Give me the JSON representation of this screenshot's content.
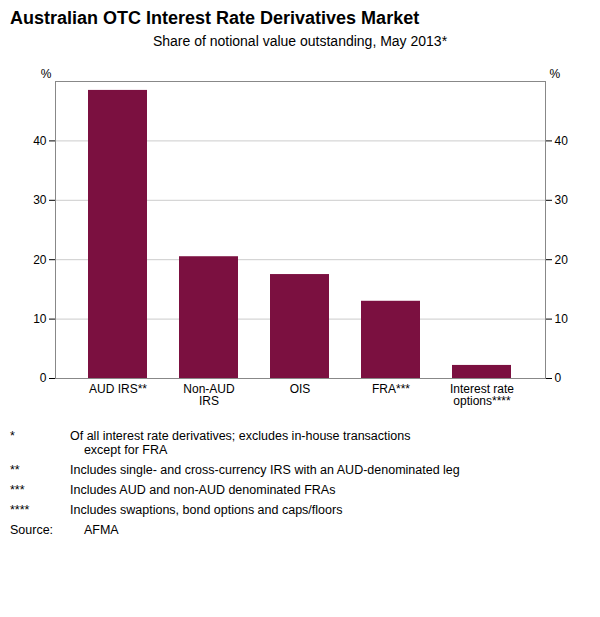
{
  "chart_data": {
    "type": "bar",
    "title": "Australian OTC Interest Rate Derivatives Market",
    "subtitle": "Share of notional value outstanding, May 2013*",
    "categories": [
      "AUD IRS**",
      "Non-AUD\nIRS",
      "OIS",
      "FRA***",
      "Interest rate\noptions****"
    ],
    "values": [
      48.5,
      20.5,
      17.5,
      13.0,
      2.2
    ],
    "color": "#7B1040",
    "ylim": [
      0,
      50
    ],
    "yticks": [
      0,
      10,
      20,
      30,
      40
    ],
    "y2lim": [
      0,
      50
    ],
    "y2ticks": [
      0,
      10,
      20,
      30,
      40
    ],
    "ylabel": "%",
    "y2label": "%",
    "grid": true,
    "footnotes": [
      [
        "*",
        "Of all interest rate derivatives; excludes in-house transactions\n    except for FRA"
      ],
      [
        "**",
        "Includes single- and cross-currency IRS with an AUD-denominated leg"
      ],
      [
        "***",
        "Includes AUD and non-AUD denominated FRAs"
      ],
      [
        "****",
        "Includes swaptions, bond options and caps/floors"
      ],
      [
        "Source:",
        "    AFMA"
      ]
    ]
  }
}
